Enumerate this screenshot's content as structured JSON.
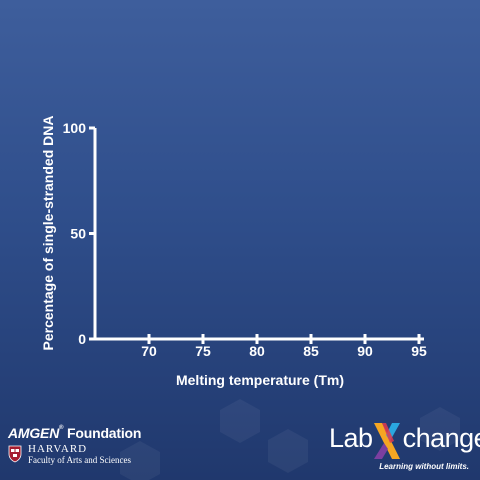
{
  "chart_data": {
    "type": "line",
    "title": "",
    "xlabel": "Melting temperature (Tm)",
    "ylabel": "Percentage of single-stranded DNA",
    "x_ticks": [
      70,
      75,
      80,
      85,
      90,
      95
    ],
    "y_ticks": [
      0,
      50,
      100
    ],
    "xlim": [
      65,
      95
    ],
    "ylim": [
      0,
      100
    ],
    "grid": false,
    "series": []
  },
  "branding": {
    "amgen_brand": "AMGEN",
    "amgen_tm": "®",
    "amgen_foundation": " Foundation",
    "harvard_name": "HARVARD",
    "harvard_faculty": "Faculty of Arts and Sciences",
    "labxchange_lab": "Lab",
    "labxchange_change": "change",
    "labxchange_tm": "™",
    "labxchange_tagline": "Learning without limits.",
    "accent_colors": [
      "#f5a623",
      "#e23a4f",
      "#7b3fa0",
      "#2aa7e0"
    ]
  }
}
